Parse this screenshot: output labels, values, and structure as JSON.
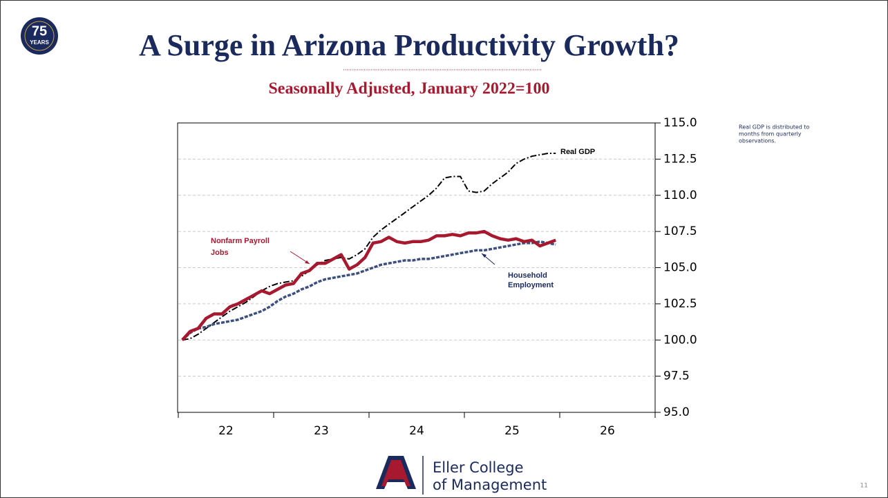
{
  "slide": {
    "badge_number": "75",
    "badge_text": "YEARS",
    "title": "A Surge in Arizona Productivity Growth?",
    "subtitle": "Seasonally Adjusted, January 2022=100",
    "note": [
      "Real GDP is distributed to",
      "months from quarterly",
      "observations."
    ],
    "footer_lines": [
      "Eller College",
      "of Management"
    ],
    "page_number": "11"
  },
  "chart_data": {
    "type": "line",
    "x": [
      22.042,
      22.125,
      22.208,
      22.292,
      22.375,
      22.458,
      22.542,
      22.625,
      22.708,
      22.792,
      22.875,
      22.958,
      23.042,
      23.125,
      23.208,
      23.292,
      23.375,
      23.458,
      23.542,
      23.625,
      23.708,
      23.792,
      23.875,
      23.958,
      24.042,
      24.125,
      24.208,
      24.292,
      24.375,
      24.458,
      24.542,
      24.625,
      24.708,
      24.792,
      24.875,
      24.958,
      25.042,
      25.125,
      25.208,
      25.292,
      25.375,
      25.458,
      25.542,
      25.625,
      25.708,
      25.792,
      25.875,
      25.958
    ],
    "series": [
      {
        "name": "Real GDP",
        "color": "#000000",
        "values": [
          100.0,
          100.1,
          100.4,
          100.8,
          101.2,
          101.6,
          102.0,
          102.3,
          102.6,
          103.0,
          103.4,
          103.7,
          103.9,
          104.0,
          104.1,
          104.4,
          104.8,
          105.2,
          105.5,
          105.6,
          105.7,
          105.6,
          105.9,
          106.3,
          107.1,
          107.6,
          108.0,
          108.4,
          108.8,
          109.2,
          109.6,
          110.0,
          110.5,
          111.2,
          111.3,
          111.3,
          110.3,
          110.2,
          110.3,
          110.8,
          111.2,
          111.6,
          112.2,
          112.5,
          112.7,
          112.8,
          112.9,
          112.9
        ]
      },
      {
        "name": [
          "Household",
          "Employment"
        ],
        "color": "#3c4f7e",
        "values": [
          100.0,
          100.5,
          100.8,
          100.9,
          101.1,
          101.2,
          101.3,
          101.4,
          101.6,
          101.8,
          102.0,
          102.3,
          102.7,
          103.0,
          103.2,
          103.5,
          103.7,
          104.0,
          104.2,
          104.3,
          104.4,
          104.5,
          104.6,
          104.8,
          105.0,
          105.2,
          105.3,
          105.4,
          105.5,
          105.5,
          105.6,
          105.6,
          105.7,
          105.8,
          105.9,
          106.0,
          106.1,
          106.2,
          106.2,
          106.3,
          106.4,
          106.5,
          106.6,
          106.7,
          106.7,
          106.8,
          106.7,
          106.6
        ]
      },
      {
        "name": [
          "Nonfarm Payroll",
          "Jobs"
        ],
        "color": "#a6192e",
        "values": [
          100.0,
          100.6,
          100.8,
          101.5,
          101.8,
          101.8,
          102.3,
          102.5,
          102.8,
          103.1,
          103.4,
          103.2,
          103.5,
          103.8,
          103.9,
          104.6,
          104.8,
          105.3,
          105.3,
          105.6,
          105.9,
          104.9,
          105.2,
          105.7,
          106.7,
          106.8,
          107.1,
          106.8,
          106.7,
          106.8,
          106.8,
          106.9,
          107.2,
          107.2,
          107.3,
          107.2,
          107.4,
          107.4,
          107.5,
          107.2,
          107.0,
          106.9,
          107.0,
          106.8,
          106.9,
          106.5,
          106.7,
          106.9
        ]
      }
    ],
    "xlim": [
      22,
      27
    ],
    "xticks": [
      {
        "value": 22.5,
        "label": "22"
      },
      {
        "value": 23.5,
        "label": "23"
      },
      {
        "value": 24.5,
        "label": "24"
      },
      {
        "value": 25.5,
        "label": "25"
      },
      {
        "value": 26.5,
        "label": "26"
      }
    ],
    "ylim": [
      95,
      115
    ],
    "yticks": [
      {
        "value": 95,
        "label": "95.0"
      },
      {
        "value": 97.5,
        "label": "97.5"
      },
      {
        "value": 100,
        "label": "100.0"
      },
      {
        "value": 102.5,
        "label": "102.5"
      },
      {
        "value": 105,
        "label": "105.0"
      },
      {
        "value": 107.5,
        "label": "107.5"
      },
      {
        "value": 110,
        "label": "110.0"
      },
      {
        "value": 112.5,
        "label": "112.5"
      },
      {
        "value": 115,
        "label": "115.0"
      }
    ],
    "grid": true
  }
}
